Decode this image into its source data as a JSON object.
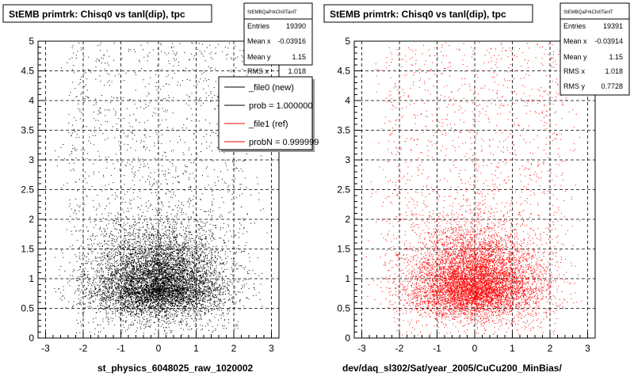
{
  "chart_data": [
    {
      "type": "scatter",
      "title": "StEMB primtrk: Chisq0 vs tanl(dip), tpc",
      "xlabel": "st_physics_6048025_raw_1020002",
      "xlim": [
        -3.2,
        3.2
      ],
      "ylim": [
        0,
        5
      ],
      "x_ticks": [
        "-3",
        "-2",
        "-1",
        "0",
        "1",
        "2",
        "3"
      ],
      "y_ticks": [
        "0",
        "0.5",
        "1",
        "1.5",
        "2",
        "2.5",
        "3",
        "3.5",
        "4",
        "4.5",
        "5"
      ],
      "grid": true,
      "color": "#000000",
      "stats": {
        "header": "StEMBQaPrkChi0TanlT",
        "rows": [
          {
            "label": "Entries",
            "value": "19390"
          },
          {
            "label": "Mean x",
            "value": "-0.03916"
          },
          {
            "label": "Mean y",
            "value": "1.15"
          },
          {
            "label": "RMS x",
            "value": "1.018"
          }
        ]
      },
      "legend": {
        "placement": "top-right",
        "entries": [
          {
            "label": "_file0 (new)",
            "color": "#000000"
          },
          {
            "label": "prob = 1.000000",
            "color": "#000000"
          },
          {
            "label": "_file1 (ref)",
            "color": "#ff0000"
          },
          {
            "label": "probN = 0.999999",
            "color": "#ff0000"
          }
        ]
      }
    },
    {
      "type": "scatter",
      "title": "StEMB primtrk: Chisq0 vs tanl(dip), tpc",
      "xlabel": "dev/daq_sl302/Sat/year_2005/CuCu200_MinBias/",
      "xlim": [
        -3.2,
        3.2
      ],
      "ylim": [
        0,
        5
      ],
      "x_ticks": [
        "-3",
        "-2",
        "-1",
        "0",
        "1",
        "2",
        "3"
      ],
      "y_ticks": [
        "0",
        "0.5",
        "1",
        "1.5",
        "2",
        "2.5",
        "3",
        "3.5",
        "4",
        "4.5",
        "5"
      ],
      "grid": true,
      "color": "#ff0000",
      "stats": {
        "header": "StEMBQaPrkChi0TanlT",
        "rows": [
          {
            "label": "Entries",
            "value": "19391"
          },
          {
            "label": "Mean x",
            "value": "-0.03914"
          },
          {
            "label": "Mean y",
            "value": "1.15"
          },
          {
            "label": "RMS x",
            "value": "1.018"
          },
          {
            "label": "RMS y",
            "value": "0.7728"
          }
        ]
      }
    }
  ]
}
